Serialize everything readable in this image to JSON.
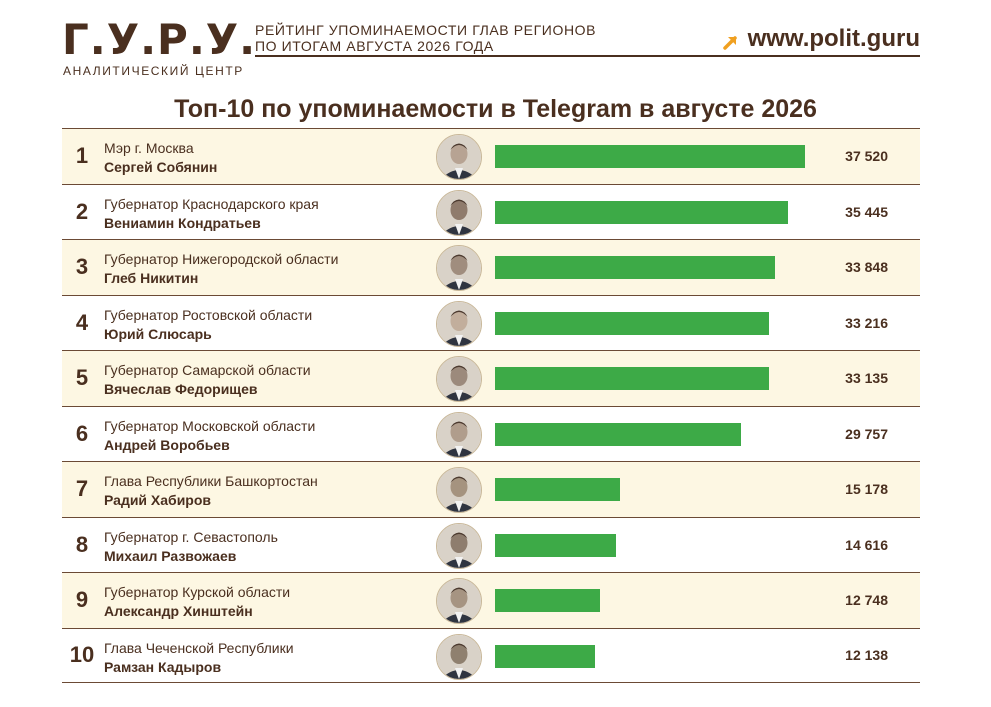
{
  "header": {
    "logo": "Г.У.Р.У.",
    "logo_sub": "АНАЛИТИЧЕСКИЙ ЦЕНТР",
    "subtitle_line1": "РЕЙТИНГ УПОМИНАЕМОСТИ ГЛАВ РЕГИОНОВ",
    "subtitle_line2": "ПО ИТОГАМ АВГУСТА 2026 ГОДА",
    "website": "www.polit.guru",
    "arrow_icon": "arrow-up-right-icon",
    "accent_color": "#f0a020"
  },
  "chart_data": {
    "type": "bar",
    "orientation": "horizontal",
    "title": "Топ-10 по упоминаемости в Telegram в августе 2026",
    "bar_color": "#3daa47",
    "xlim": [
      0,
      37520
    ],
    "rows": [
      {
        "rank": "1",
        "post": "Мэр г. Москва",
        "name": "Сергей Собянин",
        "value": 37520,
        "label": "37 520"
      },
      {
        "rank": "2",
        "post": "Губернатор Краснодарского края",
        "name": "Вениамин Кондратьев",
        "value": 35445,
        "label": "35 445"
      },
      {
        "rank": "3",
        "post": "Губернатор Нижегородской области",
        "name": "Глеб Никитин",
        "value": 33848,
        "label": "33 848"
      },
      {
        "rank": "4",
        "post": "Губернатор Ростовской области",
        "name": "Юрий Слюсарь",
        "value": 33216,
        "label": "33 216"
      },
      {
        "rank": "5",
        "post": "Губернатор Самарской области",
        "name": "Вячеслав Федорищев",
        "value": 33135,
        "label": "33 135"
      },
      {
        "rank": "6",
        "post": "Губернатор Московской области",
        "name": "Андрей Воробьев",
        "value": 29757,
        "label": "29 757"
      },
      {
        "rank": "7",
        "post": "Глава Республики Башкортостан",
        "name": "Радий Хабиров",
        "value": 15178,
        "label": "15 178"
      },
      {
        "rank": "8",
        "post": "Губернатор г. Севастополь",
        "name": "Михаил Развожаев",
        "value": 14616,
        "label": "14 616"
      },
      {
        "rank": "9",
        "post": "Губернатор Курской области",
        "name": "Александр Хинштейн",
        "value": 12748,
        "label": "12 748"
      },
      {
        "rank": "10",
        "post": "Глава Чеченской Республики",
        "name": "Рамзан Кадыров",
        "value": 12138,
        "label": "12 138"
      }
    ]
  }
}
